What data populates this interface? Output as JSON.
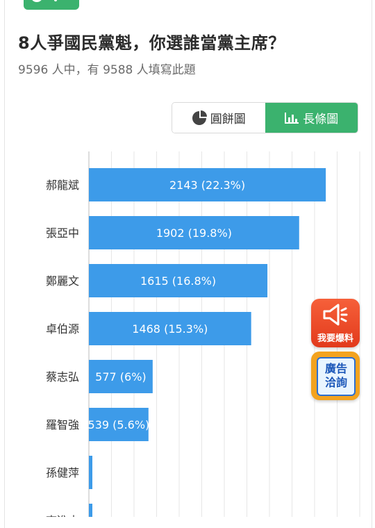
{
  "poll": {
    "title": "8人爭國民黨魁，你選誰當黨主席？",
    "subtitle": "9596 人中，有 9588 人填寫此題"
  },
  "toggle": {
    "pie_label": "圓餅圖",
    "bar_label": "長條圖",
    "active": "bar"
  },
  "chart_data": {
    "type": "bar",
    "orientation": "horizontal",
    "categories": [
      "郝龍斌",
      "張亞中",
      "鄭麗文",
      "卓伯源",
      "蔡志弘",
      "羅智強",
      "孫健萍",
      "李進木"
    ],
    "values": [
      2143,
      1902,
      1615,
      1468,
      577,
      539,
      30,
      28
    ],
    "labels": [
      "2143 (22.3%)",
      "1902 (19.8%)",
      "1615 (16.8%)",
      "1468 (15.3%)",
      "577 (6%)",
      "539 (5.6%)",
      "",
      ""
    ],
    "visible_names": [
      "郝龍斌",
      "張亞中",
      "鄭麗文",
      "卓伯源",
      "蔡志弘",
      "羅智強",
      "孫健萍",
      "李進木"
    ],
    "bar_color": "#3d9be9",
    "grid": true
  },
  "floating": {
    "report_label": "我要爆料",
    "ad_line1": "廣告",
    "ad_line2": "洽詢"
  },
  "colors": {
    "accent": "#3bb26e",
    "bar": "#3d9be9",
    "report": "#ef4b2a",
    "ad": "#f3a31f"
  }
}
